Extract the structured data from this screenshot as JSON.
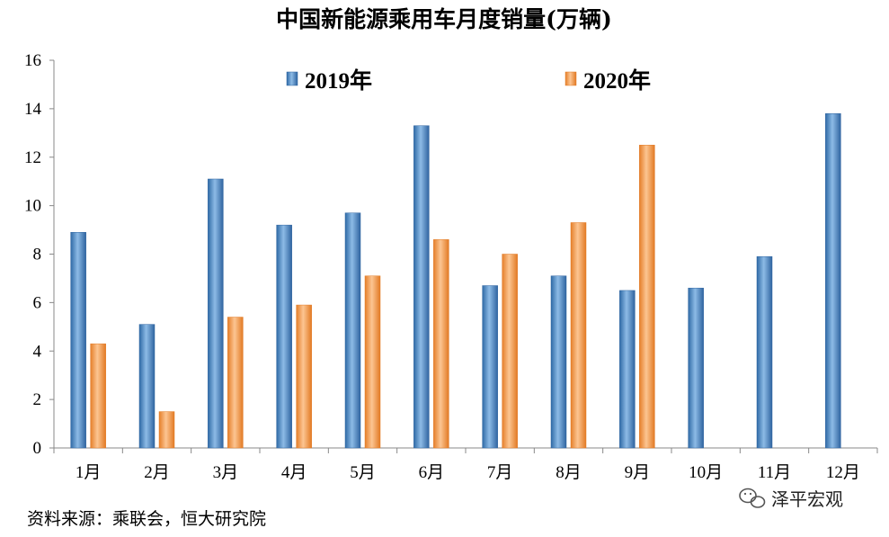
{
  "chart_data": {
    "type": "bar",
    "title": "中国新能源乘用车月度销量(万辆)",
    "categories": [
      "1月",
      "2月",
      "3月",
      "4月",
      "5月",
      "6月",
      "7月",
      "8月",
      "9月",
      "10月",
      "11月",
      "12月"
    ],
    "series": [
      {
        "name": "2019年",
        "color": "#4a86c0",
        "values": [
          8.9,
          5.1,
          11.1,
          9.2,
          9.7,
          13.3,
          6.7,
          7.1,
          6.5,
          6.6,
          7.9,
          13.8
        ]
      },
      {
        "name": "2020年",
        "color": "#f39a4c",
        "values": [
          4.3,
          1.5,
          5.4,
          5.9,
          7.1,
          8.6,
          8.0,
          9.3,
          12.5,
          null,
          null,
          null
        ]
      }
    ],
    "ylim": [
      0,
      16
    ],
    "yticks": [
      "0",
      "2",
      "4",
      "6",
      "8",
      "10",
      "12",
      "14",
      "16"
    ],
    "grid": false,
    "legend": "top"
  },
  "source": "资料来源：乘联会，恒大研究院",
  "watermark": "泽平宏观",
  "watermark_icon": "wechat-icon"
}
